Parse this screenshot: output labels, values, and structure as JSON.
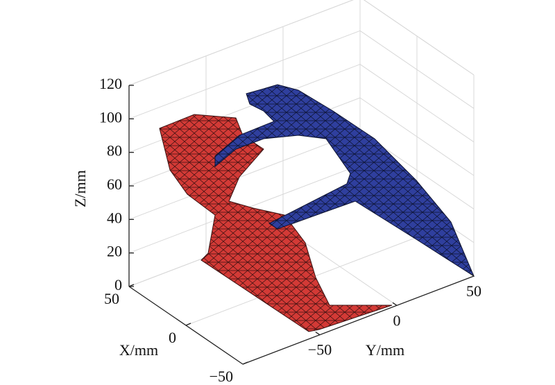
{
  "chart_data": {
    "type": "surface3d",
    "xlabel": "X/mm",
    "ylabel": "Y/mm",
    "zlabel": "Z/mm",
    "xlim": [
      50,
      -50
    ],
    "xticks": [
      50,
      0,
      {
        "value": -50,
        "label": "−50"
      }
    ],
    "ylim": [
      -100,
      50
    ],
    "yticks": [
      {
        "value": -50,
        "label": "−50"
      },
      0,
      50
    ],
    "zlim": [
      0,
      120
    ],
    "zticks": [
      0,
      20,
      40,
      60,
      80,
      100,
      120
    ],
    "grid": true
  }
}
